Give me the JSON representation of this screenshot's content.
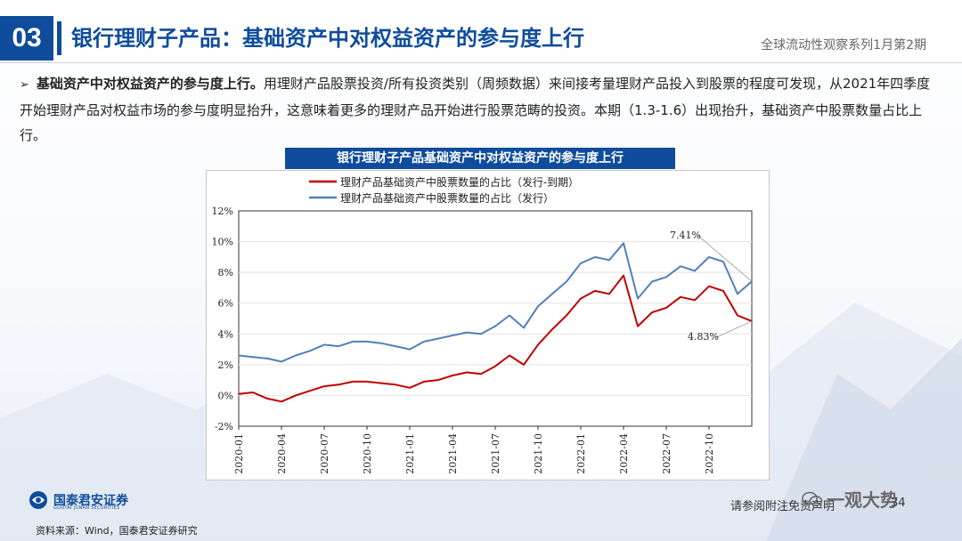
{
  "header": {
    "section_number": "03",
    "title": "银行理财子产品：基础资产中对权益资产的参与度上行",
    "series_tag": "全球流动性观察系列1月第2期"
  },
  "body": {
    "bullet_bold": "基础资产中对权益资产的参与度上行。",
    "bullet_text": "用理财产品股票投资/所有投资类别（周频数据）来间接考量理财产品投入到股票的程度可发现，从2021年四季度开始理财产品对权益市场的参与度明显抬升，这意味着更多的理财产品开始进行股票范畴的投资。本期（1.3-1.6）出现抬升，基础资产中股票数量占比上行。"
  },
  "chart_title": "银行理财子产品基础资产中对权益资产的参与度上行",
  "chart_data": {
    "type": "line",
    "title": "银行理财子产品基础资产中对权益资产的参与度上行",
    "xlabel": "",
    "ylabel": "",
    "ylim": [
      -2,
      12
    ],
    "y_ticks": [
      "-2%",
      "0%",
      "2%",
      "4%",
      "6%",
      "8%",
      "10%",
      "12%"
    ],
    "x_tick_labels": [
      "2020-01",
      "2020-04",
      "2020-07",
      "2020-10",
      "2021-01",
      "2021-04",
      "2021-07",
      "2021-10",
      "2022-01",
      "2022-04",
      "2022-07",
      "2022-10"
    ],
    "grid": true,
    "legend_position": "top",
    "annotations": [
      {
        "text": "7.41%",
        "x": "2023-01-06",
        "y": 7.41
      },
      {
        "text": "4.83%",
        "x": "2023-01-06",
        "y": 4.83
      }
    ],
    "series": [
      {
        "name": "理财产品基础资产中股票数量的占比（发行-到期）",
        "color": "#c00000",
        "x": [
          "2020-01",
          "2020-02",
          "2020-03",
          "2020-04",
          "2020-05",
          "2020-06",
          "2020-07",
          "2020-08",
          "2020-09",
          "2020-10",
          "2020-11",
          "2020-12",
          "2021-01",
          "2021-02",
          "2021-03",
          "2021-04",
          "2021-05",
          "2021-06",
          "2021-07",
          "2021-08",
          "2021-09",
          "2021-10",
          "2021-11",
          "2021-12",
          "2022-01",
          "2022-02",
          "2022-03",
          "2022-04",
          "2022-05",
          "2022-06",
          "2022-07",
          "2022-08",
          "2022-09",
          "2022-10",
          "2022-11",
          "2022-12",
          "2023-01"
        ],
        "values": [
          0.1,
          0.2,
          -0.2,
          -0.4,
          0.0,
          0.3,
          0.6,
          0.7,
          0.9,
          0.9,
          0.8,
          0.7,
          0.5,
          0.9,
          1.0,
          1.3,
          1.5,
          1.4,
          1.9,
          2.6,
          2.0,
          3.3,
          4.3,
          5.2,
          6.3,
          6.8,
          6.6,
          7.8,
          4.5,
          5.4,
          5.7,
          6.4,
          6.2,
          7.1,
          6.8,
          5.2,
          4.83
        ]
      },
      {
        "name": "理财产品基础资产中股票数量的占比（发行）",
        "color": "#4f81bd",
        "x": [
          "2020-01",
          "2020-02",
          "2020-03",
          "2020-04",
          "2020-05",
          "2020-06",
          "2020-07",
          "2020-08",
          "2020-09",
          "2020-10",
          "2020-11",
          "2020-12",
          "2021-01",
          "2021-02",
          "2021-03",
          "2021-04",
          "2021-05",
          "2021-06",
          "2021-07",
          "2021-08",
          "2021-09",
          "2021-10",
          "2021-11",
          "2021-12",
          "2022-01",
          "2022-02",
          "2022-03",
          "2022-04",
          "2022-05",
          "2022-06",
          "2022-07",
          "2022-08",
          "2022-09",
          "2022-10",
          "2022-11",
          "2022-12",
          "2023-01"
        ],
        "values": [
          2.6,
          2.5,
          2.4,
          2.2,
          2.6,
          2.9,
          3.3,
          3.2,
          3.5,
          3.5,
          3.4,
          3.2,
          3.0,
          3.5,
          3.7,
          3.9,
          4.1,
          4.0,
          4.5,
          5.2,
          4.4,
          5.8,
          6.6,
          7.4,
          8.6,
          9.0,
          8.8,
          9.9,
          6.3,
          7.4,
          7.7,
          8.4,
          8.1,
          9.0,
          8.7,
          6.6,
          7.41
        ]
      }
    ]
  },
  "footer": {
    "logo_cn": "国泰君安证券",
    "logo_en": "GUOTAI JUNAN SECURITIES",
    "disclaimer": "请参阅附注免责声明",
    "page_number": "34",
    "wechat_watermark": "一观大势",
    "source": "资料来源：Wind，国泰君安证券研究"
  },
  "colors": {
    "brand": "#0f4c9c",
    "series_red": "#c00000",
    "series_blue": "#4f81bd"
  }
}
